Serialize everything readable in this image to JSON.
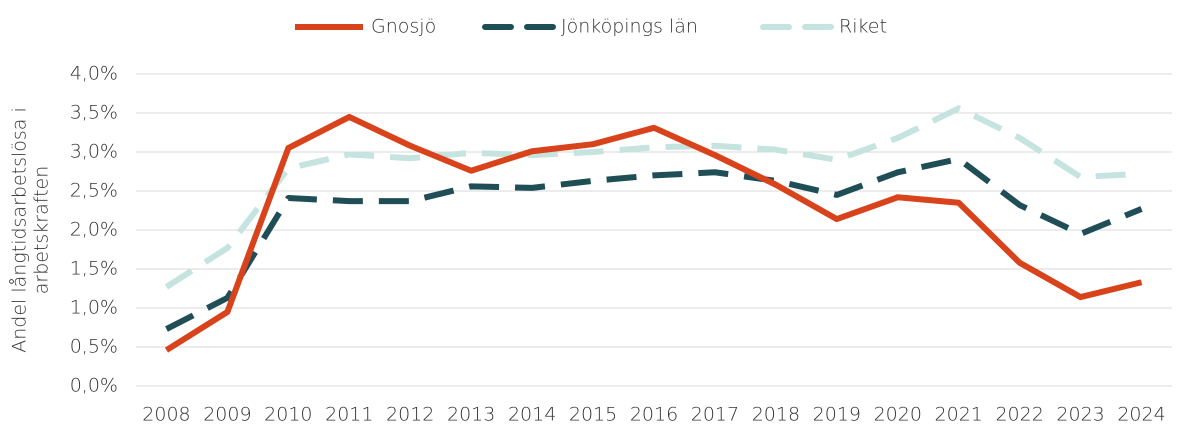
{
  "chart_data": {
    "type": "line",
    "ylabel": [
      "Andel långtidsarbetslösa i",
      "arbetskraften"
    ],
    "categories": [
      "2008",
      "2009",
      "2010",
      "2011",
      "2012",
      "2013",
      "2014",
      "2015",
      "2016",
      "2017",
      "2018",
      "2019",
      "2020",
      "2021",
      "2022",
      "2023",
      "2024"
    ],
    "series": [
      {
        "name": "Gnosjö",
        "color": "#d9431b",
        "linestyle": "solid",
        "values": [
          0.46,
          0.95,
          3.05,
          3.45,
          3.08,
          2.76,
          3.01,
          3.1,
          3.31,
          2.96,
          2.58,
          2.14,
          2.42,
          2.35,
          1.58,
          1.14,
          1.33
        ]
      },
      {
        "name": "Jönköpings län",
        "color": "#1f4e57",
        "linestyle": "dashed",
        "values": [
          0.73,
          1.13,
          2.41,
          2.37,
          2.37,
          2.56,
          2.54,
          2.63,
          2.7,
          2.74,
          2.63,
          2.45,
          2.74,
          2.91,
          2.32,
          1.95,
          2.27
        ]
      },
      {
        "name": "Riket",
        "color": "#c5e3df",
        "linestyle": "dashed",
        "values": [
          1.27,
          1.77,
          2.79,
          2.97,
          2.92,
          2.99,
          2.96,
          3.0,
          3.06,
          3.08,
          3.03,
          2.9,
          3.18,
          3.56,
          3.18,
          2.68,
          2.72
        ]
      }
    ],
    "ylim": [
      0,
      4
    ],
    "yticks": [
      {
        "value": 0,
        "label": "0,0%"
      },
      {
        "value": 0.5,
        "label": "0,5%"
      },
      {
        "value": 1,
        "label": "1,0%"
      },
      {
        "value": 1.5,
        "label": "1,5%"
      },
      {
        "value": 2,
        "label": "2,0%"
      },
      {
        "value": 2.5,
        "label": "2,5%"
      },
      {
        "value": 3,
        "label": "3,0%"
      },
      {
        "value": 3.5,
        "label": "3,5%"
      },
      {
        "value": 4,
        "label": "4,0%"
      }
    ],
    "grid": true,
    "legend": "top"
  }
}
